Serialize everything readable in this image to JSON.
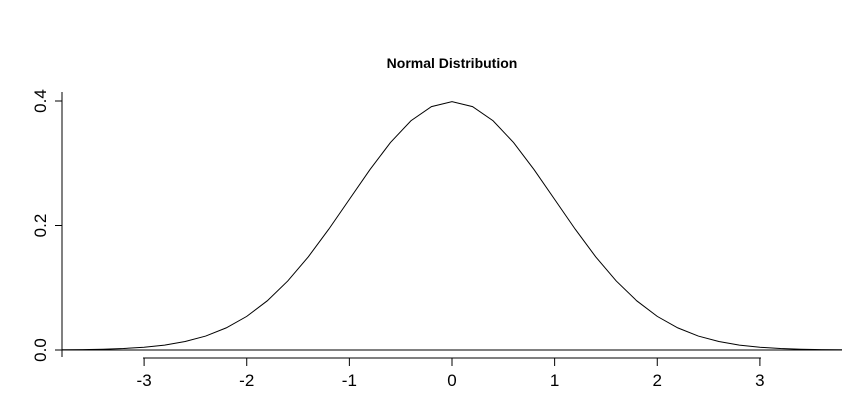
{
  "chart_data": {
    "type": "line",
    "title": "Normal Distribution",
    "xlabel": "",
    "ylabel": "",
    "xlim": [
      -3.8,
      3.8
    ],
    "ylim": [
      0,
      0.4
    ],
    "x_ticks": [
      -3,
      -2,
      -1,
      0,
      1,
      2,
      3
    ],
    "x_tick_labels": [
      "-3",
      "-2",
      "-1",
      "0",
      "1",
      "2",
      "3"
    ],
    "y_ticks": [
      0,
      0.2,
      0.4
    ],
    "y_tick_labels": [
      "0.0",
      "0.2",
      "0.4"
    ],
    "grid": false,
    "legend": "none",
    "series": [
      {
        "x": [
          -3.8,
          -3.6,
          -3.4,
          -3.2,
          -3.0,
          -2.8,
          -2.6,
          -2.4,
          -2.2,
          -2.0,
          -1.8,
          -1.6,
          -1.4,
          -1.2,
          -1.0,
          -0.8,
          -0.6,
          -0.4,
          -0.2,
          0.0,
          0.2,
          0.4,
          0.6,
          0.8,
          1.0,
          1.2,
          1.4,
          1.6,
          1.8,
          2.0,
          2.2,
          2.4,
          2.6,
          2.8,
          3.0,
          3.2,
          3.4,
          3.6,
          3.8
        ],
        "y": [
          0.0003,
          0.0006,
          0.0012,
          0.0024,
          0.0044,
          0.0079,
          0.0136,
          0.0224,
          0.0355,
          0.054,
          0.079,
          0.1109,
          0.1497,
          0.1942,
          0.242,
          0.2897,
          0.3332,
          0.3683,
          0.391,
          0.3989,
          0.391,
          0.3683,
          0.3332,
          0.2897,
          0.242,
          0.1942,
          0.1497,
          0.1109,
          0.079,
          0.054,
          0.0355,
          0.0224,
          0.0136,
          0.0079,
          0.0044,
          0.0024,
          0.0012,
          0.0006,
          0.0003
        ]
      }
    ]
  }
}
